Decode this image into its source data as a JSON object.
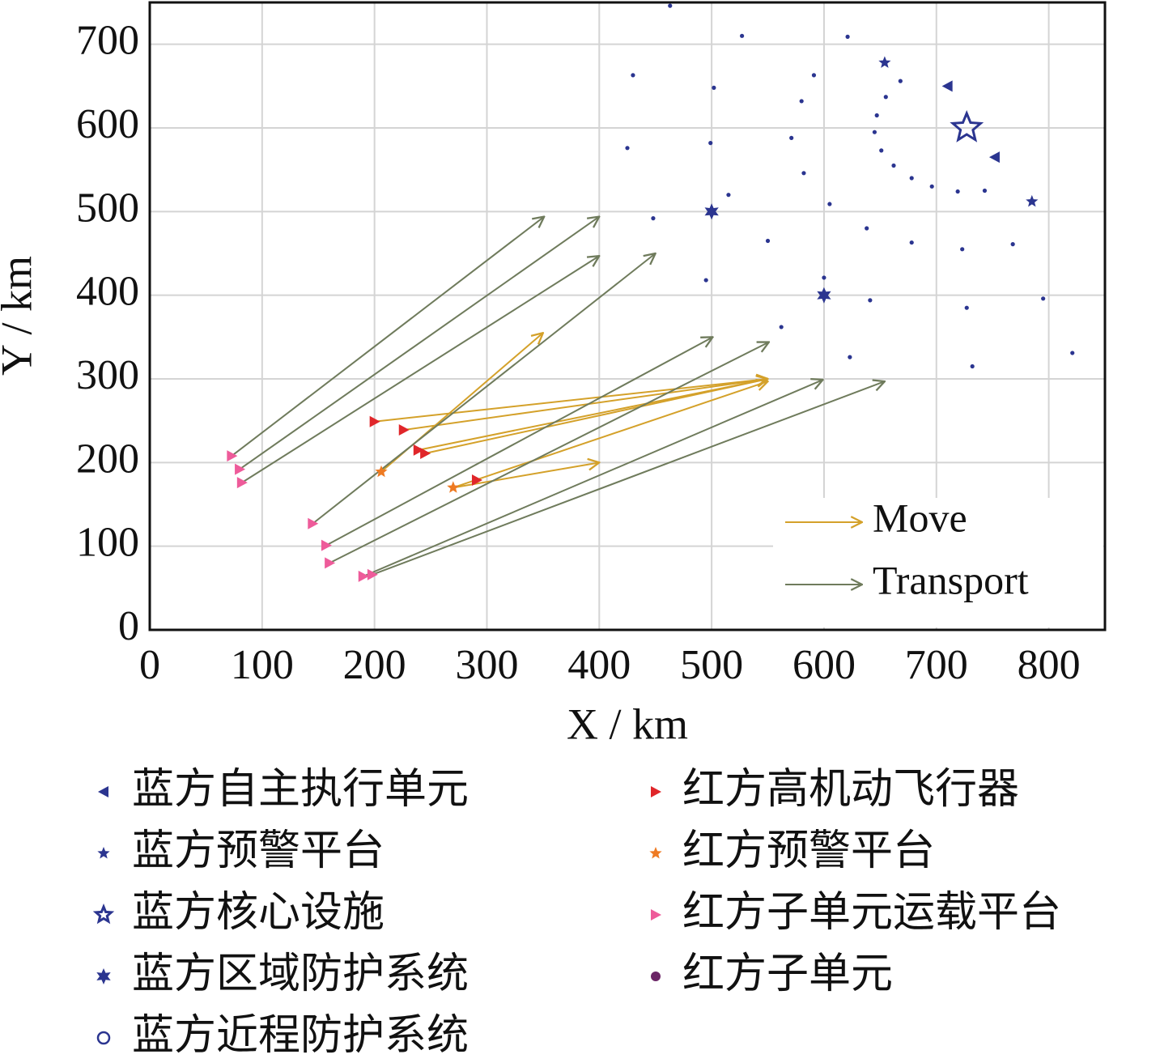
{
  "chart_data": {
    "type": "scatter",
    "xlabel": "X / km",
    "ylabel": "Y / km",
    "xlim": [
      0,
      850
    ],
    "ylim": [
      0,
      750
    ],
    "xticks": [
      0,
      100,
      200,
      300,
      400,
      500,
      600,
      700,
      800
    ],
    "yticks": [
      0,
      100,
      200,
      300,
      400,
      500,
      600,
      700
    ],
    "grid": true,
    "series": [
      {
        "name": "蓝方自主执行单元",
        "color": "#2b3590",
        "marker": "triangle-left",
        "x": [
          710,
          752
        ],
        "y": [
          650,
          565
        ]
      },
      {
        "name": "蓝方预警平台",
        "color": "#2b3590",
        "marker": "star",
        "x": [
          654,
          785
        ],
        "y": [
          678,
          512
        ]
      },
      {
        "name": "蓝方核心设施",
        "color": "#2b3590",
        "marker": "star-open",
        "x": [
          727
        ],
        "y": [
          600
        ]
      },
      {
        "name": "蓝方区域防护系统",
        "color": "#2b3590",
        "marker": "star6",
        "x": [
          500,
          600
        ],
        "y": [
          500,
          400
        ]
      },
      {
        "name": "蓝方近程防护系统",
        "color": "#2b3590",
        "marker": "circle-open",
        "x": [
          463,
          527,
          621,
          430,
          502,
          668,
          655,
          580,
          647,
          591,
          425,
          499,
          571,
          645,
          651,
          662,
          678,
          696,
          719,
          743,
          582,
          515,
          605,
          448,
          550,
          638,
          678,
          768,
          723,
          600,
          495,
          641,
          727,
          795,
          562,
          623,
          732,
          821
        ],
        "y": [
          746,
          710,
          709,
          663,
          648,
          656,
          637,
          632,
          615,
          663,
          576,
          582,
          588,
          595,
          573,
          555,
          540,
          530,
          524,
          525,
          546,
          520,
          509,
          492,
          465,
          480,
          463,
          461,
          455,
          421,
          418,
          394,
          385,
          396,
          362,
          326,
          315,
          331
        ]
      },
      {
        "name": "红方高机动飞行器",
        "color": "#e0262a",
        "marker": "triangle-right",
        "x": [
          200,
          226,
          239,
          245,
          291
        ],
        "y": [
          249,
          239,
          215,
          211,
          179
        ]
      },
      {
        "name": "红方预警平台",
        "color": "#ee7a22",
        "marker": "star",
        "x": [
          206,
          270
        ],
        "y": [
          189,
          170
        ]
      },
      {
        "name": "红方子单元运载平台",
        "color": "#ee5b9a",
        "marker": "triangle-right",
        "x": [
          73,
          80,
          82,
          145,
          157,
          160,
          190,
          198
        ],
        "y": [
          208,
          192,
          176,
          127,
          101,
          80,
          64,
          66
        ]
      },
      {
        "name": "红方子单元",
        "color": "#6b2566",
        "marker": "circle",
        "x": [],
        "y": []
      }
    ],
    "arrows": [
      {
        "name": "Move",
        "color": "#d4a12a",
        "x0": [
          206,
          200,
          226,
          239,
          245,
          270,
          270
        ],
        "y0": [
          189,
          249,
          239,
          215,
          211,
          170,
          170
        ],
        "x1": [
          350,
          550,
          550,
          550,
          550,
          550,
          400
        ],
        "y1": [
          355,
          300,
          300,
          300,
          300,
          297,
          200
        ]
      },
      {
        "name": "Transport",
        "color": "#6f7b5c",
        "x0": [
          73,
          80,
          82,
          145,
          157,
          160,
          190,
          198
        ],
        "y0": [
          208,
          192,
          176,
          127,
          101,
          80,
          64,
          66
        ],
        "x1": [
          351,
          400,
          400,
          450,
          501,
          551,
          599,
          654
        ],
        "y1": [
          494,
          494,
          447,
          450,
          350,
          344,
          299,
          297
        ]
      }
    ]
  }
}
